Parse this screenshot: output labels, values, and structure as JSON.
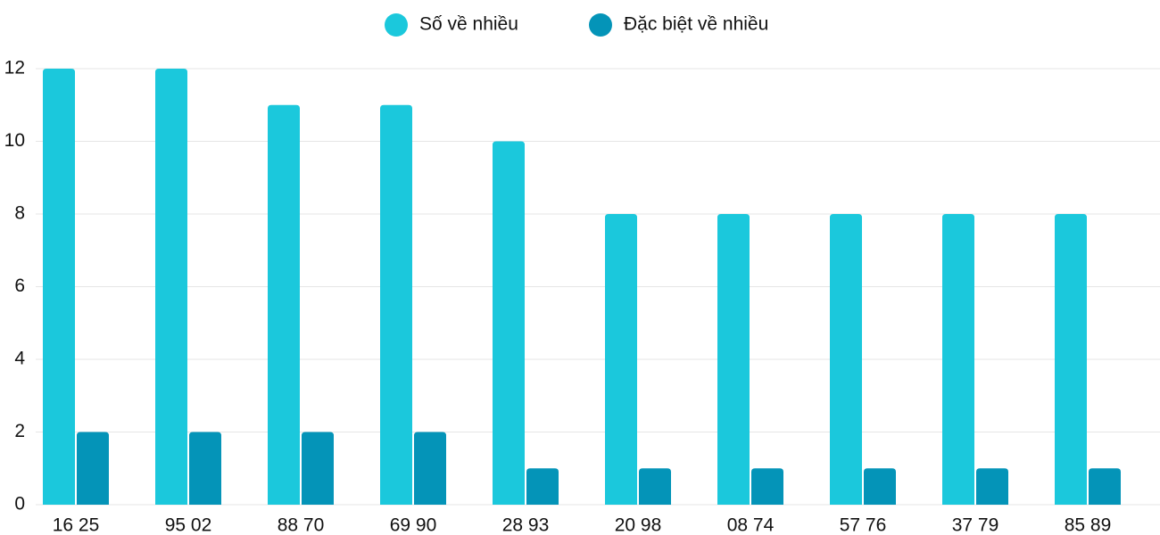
{
  "chart_data": {
    "type": "bar",
    "categories": [
      "16 25",
      "95 02",
      "88 70",
      "69 90",
      "28 93",
      "20 98",
      "08 74",
      "57 76",
      "37 79",
      "85 89"
    ],
    "series": [
      {
        "name": "Số về nhiều",
        "color": "#1bc8dc",
        "values": [
          12,
          12,
          11,
          11,
          10,
          8,
          8,
          8,
          8,
          8
        ]
      },
      {
        "name": "Đặc biệt về nhiều",
        "color": "#0494b8",
        "values": [
          2,
          2,
          2,
          2,
          1,
          1,
          1,
          1,
          1,
          1
        ]
      }
    ],
    "ylim": [
      0,
      12
    ],
    "yticks": [
      0,
      2,
      4,
      6,
      8,
      10,
      12
    ],
    "grid": true,
    "legend": "top"
  }
}
